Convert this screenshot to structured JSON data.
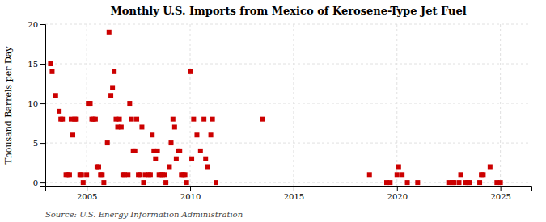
{
  "chart_data": {
    "type": "scatter",
    "title": "Monthly U.S. Imports from Mexico of Kerosene-Type Jet Fuel",
    "ylabel": "Thousand Barrels per Day",
    "source": "Source: U.S. Energy Information Administration",
    "color": "#cc0000",
    "marker": "square",
    "grid": true,
    "xlim": [
      2003.0,
      2026.5
    ],
    "ylim": [
      -0.5,
      20
    ],
    "xticks": [
      2005,
      2010,
      2015,
      2020,
      2025
    ],
    "yticks": [
      0,
      5,
      10,
      15,
      20
    ],
    "x": [
      2003.25,
      2003.33,
      2003.5,
      2003.67,
      2003.75,
      2003.83,
      2004.0,
      2004.08,
      2004.17,
      2004.25,
      2004.33,
      2004.42,
      2004.5,
      2004.67,
      2004.75,
      2004.83,
      2005.0,
      2005.08,
      2005.17,
      2005.25,
      2005.33,
      2005.42,
      2005.5,
      2005.58,
      2005.67,
      2005.75,
      2005.83,
      2006.0,
      2006.08,
      2006.17,
      2006.25,
      2006.33,
      2006.42,
      2006.5,
      2006.58,
      2006.67,
      2006.75,
      2006.83,
      2007.0,
      2007.08,
      2007.17,
      2007.25,
      2007.33,
      2007.42,
      2007.5,
      2007.58,
      2007.67,
      2007.75,
      2007.83,
      2008.0,
      2008.08,
      2008.17,
      2008.25,
      2008.33,
      2008.42,
      2008.5,
      2008.58,
      2008.67,
      2008.75,
      2008.83,
      2009.0,
      2009.08,
      2009.17,
      2009.25,
      2009.33,
      2009.42,
      2009.5,
      2009.58,
      2009.67,
      2009.75,
      2009.83,
      2010.0,
      2010.08,
      2010.17,
      2010.33,
      2010.5,
      2010.67,
      2010.75,
      2010.83,
      2011.0,
      2011.08,
      2011.25,
      2013.5,
      2018.67,
      2019.5,
      2019.67,
      2020.0,
      2020.08,
      2020.25,
      2020.5,
      2021.0,
      2022.5,
      2022.67,
      2022.75,
      2023.0,
      2023.08,
      2023.33,
      2023.42,
      2023.5,
      2024.0,
      2024.08,
      2024.17,
      2024.5,
      2024.83,
      2025.0
    ],
    "values": [
      15,
      14,
      11,
      9,
      8,
      8,
      1,
      1,
      1,
      8,
      6,
      8,
      8,
      1,
      1,
      0,
      1,
      10,
      10,
      8,
      8,
      8,
      2,
      2,
      1,
      1,
      0,
      5,
      19,
      11,
      12,
      14,
      8,
      7,
      8,
      7,
      1,
      1,
      1,
      10,
      8,
      4,
      4,
      8,
      1,
      1,
      7,
      0,
      1,
      1,
      1,
      6,
      4,
      3,
      4,
      1,
      1,
      1,
      1,
      0,
      2,
      5,
      8,
      7,
      3,
      4,
      4,
      1,
      1,
      1,
      0,
      14,
      3,
      8,
      6,
      4,
      8,
      3,
      2,
      6,
      8,
      0,
      8,
      1,
      0,
      0,
      1,
      2,
      1,
      0,
      0,
      0,
      0,
      0,
      0,
      1,
      0,
      0,
      0,
      0,
      1,
      1,
      2,
      0,
      0
    ]
  }
}
